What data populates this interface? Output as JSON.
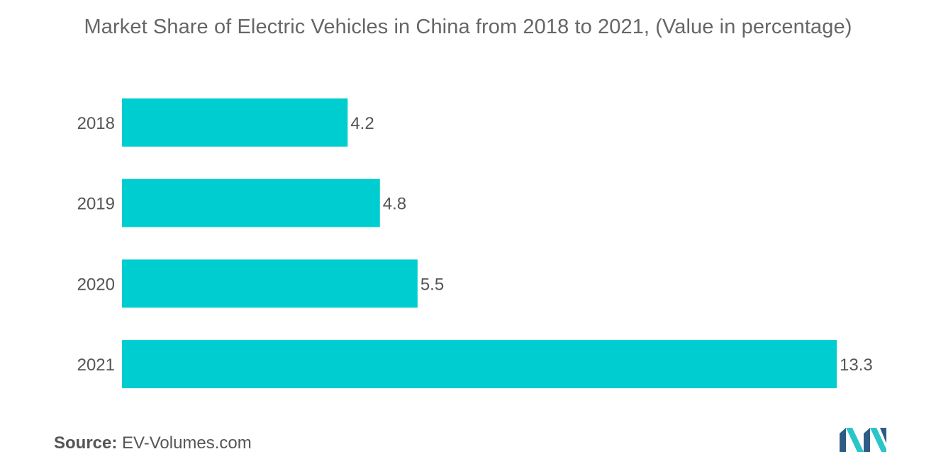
{
  "title": "Market Share of Electric Vehicles in China from 2018 to 2021, (Value in percentage)",
  "source": {
    "label": "Source:",
    "text": "EV-Volumes.com"
  },
  "colors": {
    "bar": "#00CDCF",
    "text": "#555555",
    "logo_dark": "#2D5D86",
    "logo_light": "#29C5C9"
  },
  "chart_data": {
    "type": "bar",
    "orientation": "horizontal",
    "categories": [
      "2018",
      "2019",
      "2020",
      "2021"
    ],
    "values": [
      4.2,
      4.8,
      5.5,
      13.3
    ],
    "data_labels": [
      "4.2",
      "4.8",
      "5.5",
      "13.3"
    ],
    "title": "Market Share of Electric Vehicles in China from 2018 to 2021, (Value in percentage)",
    "xlabel": "",
    "ylabel": "",
    "xlim": [
      0,
      13.3
    ],
    "grid": false,
    "legend": "none"
  }
}
